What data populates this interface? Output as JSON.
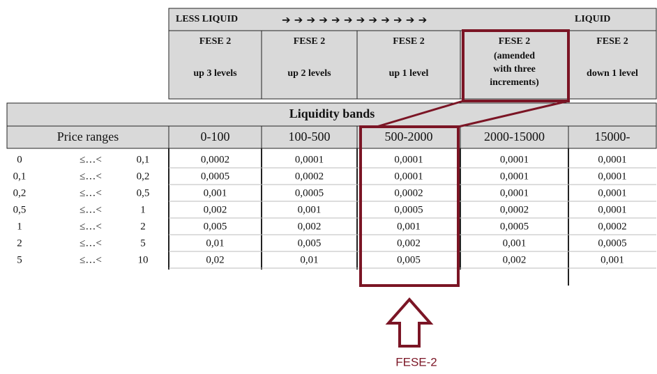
{
  "header": {
    "left": "LESS LIQUID",
    "arrows": "➔ ➔ ➔ ➔ ➔ ➔ ➔ ➔ ➔ ➔ ➔ ➔",
    "right": "LIQUID",
    "levels": [
      {
        "title": "FESE 2",
        "desc": [
          "up 3 levels"
        ]
      },
      {
        "title": "FESE 2",
        "desc": [
          "up  2 levels"
        ]
      },
      {
        "title": "FESE 2",
        "desc": [
          "up 1 level"
        ]
      },
      {
        "title": "FESE 2",
        "desc": [
          "(amended",
          "with three",
          "increments)"
        ]
      },
      {
        "title": "FESE 2",
        "desc": [
          "down 1 level"
        ]
      }
    ]
  },
  "table": {
    "title": "Liquidity bands",
    "price_header": "Price ranges",
    "bands": [
      "0-100",
      "100-500",
      "500-2000",
      "2000-15000",
      "15000-"
    ],
    "rows": [
      [
        "0",
        "≤…<",
        "0,1",
        "0,0002",
        "0,0001",
        "0,0001",
        "0,0001",
        "0,0001"
      ],
      [
        "0,1",
        "≤…<",
        "0,2",
        "0,0005",
        "0,0002",
        "0,0001",
        "0,0001",
        "0,0001"
      ],
      [
        "0,2",
        "≤…<",
        "0,5",
        "0,001",
        "0,0005",
        "0,0002",
        "0,0001",
        "0,0001"
      ],
      [
        "0,5",
        "≤…<",
        "1",
        "0,002",
        "0,001",
        "0,0005",
        "0,0002",
        "0,0001"
      ],
      [
        "1",
        "≤…<",
        "2",
        "0,005",
        "0,002",
        "0,001",
        "0,0005",
        "0,0002"
      ],
      [
        "2",
        "≤…<",
        "5",
        "0,01",
        "0,005",
        "0,002",
        "0,001",
        "0,0005"
      ],
      [
        "5",
        "≤…<",
        "10",
        "0,02",
        "0,01",
        "0,005",
        "0,002",
        "0,001"
      ]
    ]
  },
  "callout": "FESE-2"
}
